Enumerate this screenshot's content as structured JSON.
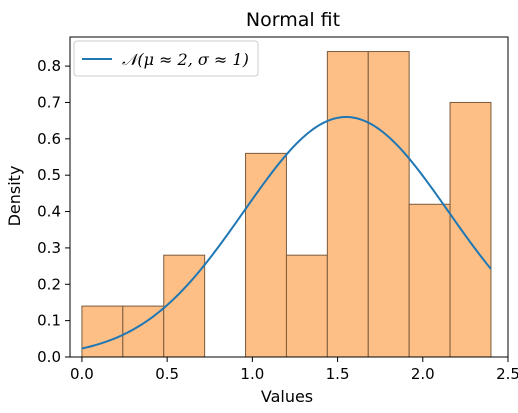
{
  "chart_data": {
    "type": "histogram",
    "title": "Normal fit",
    "xlabel": "Values",
    "ylabel": "Density",
    "xlim": [
      -0.07,
      2.5
    ],
    "ylim": [
      0,
      0.88
    ],
    "xticks": [
      "0.0",
      "0.5",
      "1.0",
      "1.5",
      "2.0",
      "2.5"
    ],
    "yticks": [
      "0.0",
      "0.1",
      "0.2",
      "0.3",
      "0.4",
      "0.5",
      "0.6",
      "0.7",
      "0.8"
    ],
    "bin_width": 0.24,
    "bins": [
      {
        "start": 0.0,
        "end": 0.24,
        "density": 0.14
      },
      {
        "start": 0.24,
        "end": 0.48,
        "density": 0.14
      },
      {
        "start": 0.48,
        "end": 0.72,
        "density": 0.28
      },
      {
        "start": 0.72,
        "end": 0.96,
        "density": 0.0
      },
      {
        "start": 0.96,
        "end": 1.2,
        "density": 0.56
      },
      {
        "start": 1.2,
        "end": 1.44,
        "density": 0.28
      },
      {
        "start": 1.44,
        "end": 1.68,
        "density": 0.84
      },
      {
        "start": 1.68,
        "end": 1.92,
        "density": 0.84
      },
      {
        "start": 1.92,
        "end": 2.16,
        "density": 0.42
      },
      {
        "start": 2.16,
        "end": 2.4,
        "density": 0.7
      }
    ],
    "series": [
      {
        "name": "𝒩(μ ≈ 2, σ ≈ 1)",
        "type": "line",
        "mu": 1.55,
        "sigma": 0.6,
        "x_range": [
          0.0,
          2.4
        ]
      }
    ],
    "legend_position": "top-left",
    "grid": false,
    "colors": {
      "bar_fill": "#fdbf86",
      "bar_edge": "#7a5a3c",
      "line": "#1f77b4"
    }
  }
}
